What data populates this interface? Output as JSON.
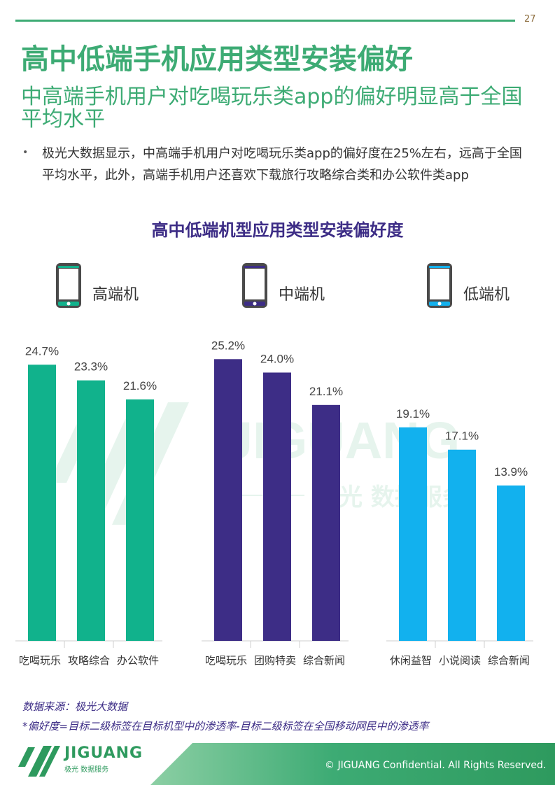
{
  "page": {
    "number": "27",
    "title": "高中低端手机应用类型安装偏好",
    "subtitle": "中高端手机用户对吃喝玩乐类app的偏好明显高于全国平均水平",
    "bullet": "极光大数据显示，中高端手机用户对吃喝玩乐类app的偏好度在25%左右，远高于全国平均水平，此外，高端手机用户还喜欢下载旅行攻略综合类和办公软件类app"
  },
  "chart_data": {
    "type": "bar",
    "title": "高中低端机型应用类型安装偏好度",
    "ylim": [
      0,
      28
    ],
    "grid": false,
    "groups": [
      {
        "name": "高端机",
        "color": "#11b28c",
        "icon": "phone-icon",
        "categories": [
          "吃喝玩乐",
          "攻略综合",
          "办公软件"
        ],
        "values": [
          24.7,
          23.3,
          21.6
        ],
        "labels": [
          "24.7%",
          "23.3%",
          "21.6%"
        ]
      },
      {
        "name": "中端机",
        "color": "#3d2d86",
        "icon": "phone-icon",
        "categories": [
          "吃喝玩乐",
          "团购特卖",
          "综合新闻"
        ],
        "values": [
          25.2,
          24.0,
          21.1
        ],
        "labels": [
          "25.2%",
          "24.0%",
          "21.1%"
        ]
      },
      {
        "name": "低端机",
        "color": "#12b1ee",
        "icon": "phone-icon",
        "categories": [
          "休闲益智",
          "小说阅读",
          "综合新闻"
        ],
        "values": [
          19.1,
          17.1,
          13.9
        ],
        "labels": [
          "19.1%",
          "17.1%",
          "13.9%"
        ]
      }
    ]
  },
  "watermark": {
    "main": "JIGUANG",
    "sub": "极光  数据服务"
  },
  "footer": {
    "source": "数据来源：极光大数据",
    "note": "*偏好度=目标二级标签在目标机型中的渗透率-目标二级标签在全国移动网民中的渗透率",
    "brand": "JIGUANG",
    "brand_sub": "极光  数据服务",
    "copyright": "© JIGUANG Confidential. All Rights Reserved."
  },
  "colors": {
    "accent": "#3dab74",
    "title_purple": "#3d2d86"
  }
}
